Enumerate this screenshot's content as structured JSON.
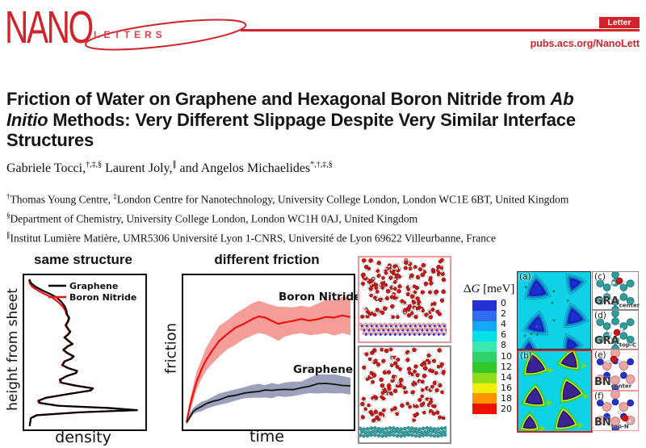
{
  "header": {
    "brand_nano": "NANO",
    "brand_letters": "LETTERS",
    "badge": "Letter",
    "url": "pubs.acs.org/NanoLett",
    "accent_color": "#d2232a"
  },
  "article": {
    "title_l1a": "Friction of Water on Graphene and Hexagonal Boron Nitride from ",
    "title_l1b": "Ab",
    "title_l2a": "Initio",
    "title_l2b": " Methods: Very Different Slippage Despite Very Similar Interface",
    "title_l3": "Structures",
    "authors": [
      {
        "name": "Gabriele Tocci,",
        "sup": "†,‡,§"
      },
      {
        "name": " Laurent Joly,",
        "sup": "∥"
      },
      {
        "name": " and Angelos Michaelides",
        "sup": "*,†,‡,§"
      }
    ],
    "aff1": {
      "m1": "†",
      "t1": "Thomas Young Centre, ",
      "m2": "‡",
      "t2": "London Centre for Nanotechnology, University College London, London WC1E 6BT, United Kingdom"
    },
    "aff2": {
      "m1": "§",
      "t1": "Department of Chemistry, University College London, London WC1H 0AJ, United Kingdom"
    },
    "aff3": {
      "m1": "∥",
      "t1": "Institut Lumière Matière, UMR5306 Université Lyon 1-CNRS, Université de Lyon 69622 Villeurbanne, France"
    }
  },
  "chart_data": [
    {
      "type": "line",
      "title": "same structure",
      "xlabel": "density",
      "ylabel": "height from sheet",
      "xlim": [
        0,
        1
      ],
      "ylim": [
        0,
        1
      ],
      "legend_position": "upper center",
      "note": "qualitative water density profile vs height; axes unlabeled (arbitrary units)",
      "series": [
        {
          "name": "Graphene",
          "color": "#000000",
          "points": [
            [
              0.02,
              0.0
            ],
            [
              0.03,
              0.05
            ],
            [
              0.08,
              0.07
            ],
            [
              0.45,
              0.09
            ],
            [
              0.97,
              0.105
            ],
            [
              0.72,
              0.12
            ],
            [
              0.28,
              0.135
            ],
            [
              0.11,
              0.155
            ],
            [
              0.1,
              0.17
            ],
            [
              0.16,
              0.19
            ],
            [
              0.35,
              0.215
            ],
            [
              0.56,
              0.24
            ],
            [
              0.58,
              0.255
            ],
            [
              0.42,
              0.275
            ],
            [
              0.3,
              0.295
            ],
            [
              0.29,
              0.315
            ],
            [
              0.35,
              0.34
            ],
            [
              0.43,
              0.36
            ],
            [
              0.44,
              0.375
            ],
            [
              0.36,
              0.395
            ],
            [
              0.31,
              0.415
            ],
            [
              0.33,
              0.44
            ],
            [
              0.39,
              0.46
            ],
            [
              0.41,
              0.475
            ],
            [
              0.35,
              0.5
            ],
            [
              0.32,
              0.52
            ],
            [
              0.36,
              0.545
            ],
            [
              0.4,
              0.56
            ],
            [
              0.36,
              0.585
            ],
            [
              0.33,
              0.605
            ],
            [
              0.36,
              0.625
            ],
            [
              0.38,
              0.645
            ],
            [
              0.36,
              0.665
            ],
            [
              0.34,
              0.69
            ],
            [
              0.36,
              0.715
            ],
            [
              0.37,
              0.74
            ],
            [
              0.35,
              0.765
            ],
            [
              0.345,
              0.79
            ],
            [
              0.33,
              0.82
            ],
            [
              0.3,
              0.85
            ],
            [
              0.26,
              0.88
            ],
            [
              0.2,
              0.905
            ],
            [
              0.13,
              0.93
            ],
            [
              0.07,
              0.955
            ],
            [
              0.03,
              0.98
            ],
            [
              0.02,
              1.0
            ]
          ]
        },
        {
          "name": "Boron Nitride",
          "color": "#ee1111",
          "points": [
            [
              0.02,
              0.0
            ],
            [
              0.03,
              0.05
            ],
            [
              0.09,
              0.07
            ],
            [
              0.47,
              0.09
            ],
            [
              0.95,
              0.105
            ],
            [
              0.7,
              0.12
            ],
            [
              0.26,
              0.135
            ],
            [
              0.1,
              0.155
            ],
            [
              0.095,
              0.17
            ],
            [
              0.17,
              0.19
            ],
            [
              0.36,
              0.215
            ],
            [
              0.55,
              0.24
            ],
            [
              0.57,
              0.255
            ],
            [
              0.41,
              0.275
            ],
            [
              0.29,
              0.295
            ],
            [
              0.285,
              0.315
            ],
            [
              0.345,
              0.34
            ],
            [
              0.425,
              0.36
            ],
            [
              0.435,
              0.375
            ],
            [
              0.355,
              0.395
            ],
            [
              0.305,
              0.415
            ],
            [
              0.325,
              0.44
            ],
            [
              0.385,
              0.46
            ],
            [
              0.405,
              0.475
            ],
            [
              0.345,
              0.5
            ],
            [
              0.315,
              0.52
            ],
            [
              0.355,
              0.545
            ],
            [
              0.395,
              0.56
            ],
            [
              0.355,
              0.585
            ],
            [
              0.325,
              0.605
            ],
            [
              0.355,
              0.625
            ],
            [
              0.375,
              0.645
            ],
            [
              0.355,
              0.665
            ],
            [
              0.335,
              0.69
            ],
            [
              0.355,
              0.715
            ],
            [
              0.365,
              0.74
            ],
            [
              0.345,
              0.765
            ],
            [
              0.335,
              0.79
            ],
            [
              0.31,
              0.82
            ],
            [
              0.27,
              0.85
            ],
            [
              0.22,
              0.88
            ],
            [
              0.15,
              0.905
            ],
            [
              0.09,
              0.93
            ],
            [
              0.04,
              0.955
            ],
            [
              0.02,
              0.98
            ],
            [
              0.015,
              1.0
            ]
          ]
        }
      ]
    },
    {
      "type": "line+band",
      "title": "different friction",
      "xlabel": "time",
      "ylabel": "friction",
      "xlim": [
        0,
        1
      ],
      "ylim": [
        0,
        1
      ],
      "note": "qualitative friction force vs time with uncertainty bands; axes unlabeled (arbitrary units)",
      "x": [
        0,
        0.02,
        0.04,
        0.06,
        0.09,
        0.12,
        0.16,
        0.2,
        0.25,
        0.3,
        0.35,
        0.4,
        0.44,
        0.48,
        0.52,
        0.56,
        0.6,
        0.65,
        0.7,
        0.75,
        0.8,
        0.85,
        0.9,
        0.95,
        1.0
      ],
      "series": [
        {
          "name": "Boron Nitride",
          "color": "#ee1111",
          "band_color": "#f4918b",
          "y": [
            0.02,
            0.13,
            0.22,
            0.3,
            0.38,
            0.45,
            0.52,
            0.58,
            0.63,
            0.67,
            0.7,
            0.73,
            0.75,
            0.74,
            0.72,
            0.7,
            0.71,
            0.72,
            0.73,
            0.72,
            0.73,
            0.75,
            0.74,
            0.76,
            0.75
          ],
          "band": [
            0.02,
            0.04,
            0.05,
            0.06,
            0.07,
            0.08,
            0.09,
            0.1,
            0.1,
            0.11,
            0.11,
            0.11,
            0.11,
            0.11,
            0.11,
            0.11,
            0.1,
            0.1,
            0.1,
            0.1,
            0.11,
            0.11,
            0.12,
            0.12,
            0.13
          ]
        },
        {
          "name": "Graphene",
          "color": "#111111",
          "band_color": "#8d93b4",
          "y": [
            0.02,
            0.06,
            0.09,
            0.11,
            0.13,
            0.15,
            0.17,
            0.18,
            0.2,
            0.21,
            0.22,
            0.23,
            0.235,
            0.24,
            0.24,
            0.245,
            0.25,
            0.25,
            0.255,
            0.27,
            0.285,
            0.29,
            0.285,
            0.275,
            0.27
          ],
          "band": [
            0.01,
            0.02,
            0.02,
            0.025,
            0.03,
            0.03,
            0.035,
            0.035,
            0.04,
            0.04,
            0.04,
            0.045,
            0.045,
            0.045,
            0.045,
            0.045,
            0.05,
            0.05,
            0.05,
            0.055,
            0.06,
            0.06,
            0.06,
            0.06,
            0.06
          ]
        }
      ]
    }
  ],
  "colorbar": {
    "delta": "Δ",
    "g": "G",
    "units": " [meV]",
    "ticks": [
      "0",
      "2",
      "4",
      "6",
      "8",
      "10",
      "12",
      "14",
      "16",
      "18",
      "20"
    ],
    "colors": [
      "#2330d2",
      "#2e6cf0",
      "#12a8f4",
      "#00e2e8",
      "#3ce8ac",
      "#2ed266",
      "#33c72b",
      "#92dc17",
      "#f2ee09",
      "#ff9400",
      "#ec1200"
    ]
  },
  "panels": {
    "a": "(a)",
    "b": "(b)",
    "c": {
      "letter": "(c)",
      "base": "GRA",
      "sub": "center"
    },
    "d": {
      "letter": "(d)",
      "base": "GRA",
      "sub": "top-C"
    },
    "e": {
      "letter": "(e)",
      "base": "BN",
      "sub": "center"
    },
    "f": {
      "letter": "(f)",
      "base": "BN",
      "sub": "top-N"
    }
  },
  "atom_colors": {
    "carbon": "#2f9d9e",
    "boron": "#eda6a6",
    "nitrogen": "#2431d6",
    "oxygen": "#cf1616",
    "hydrogen": "#efefef"
  }
}
